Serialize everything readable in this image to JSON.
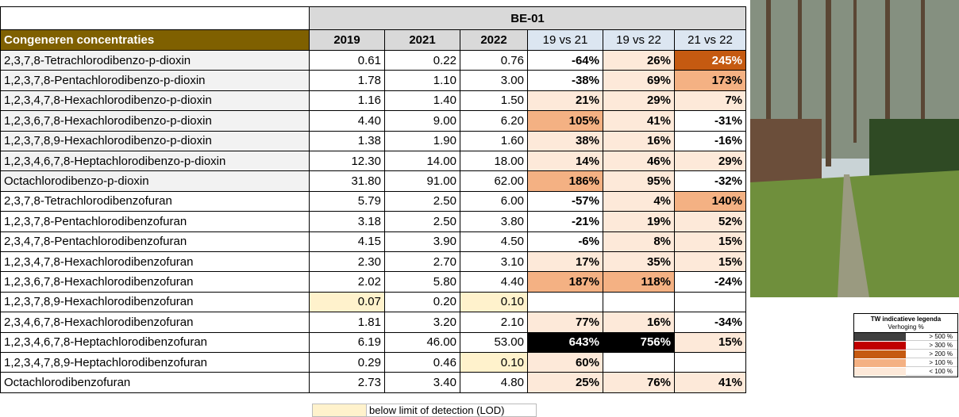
{
  "table": {
    "group_header": "BE-01",
    "name_header": "Congeneren concentraties",
    "year_headers": [
      "2019",
      "2021",
      "2022"
    ],
    "change_headers": [
      "19 vs 21",
      "19 vs 22",
      "21 vs 22"
    ],
    "rows": [
      {
        "name": "2,3,7,8-Tetrachlorodibenzo-p-dioxin",
        "color": "#f2f2f2",
        "cells": [
          "0.61",
          "0.22",
          "0.76",
          "-64%",
          {
            "text": "26%",
            "color": "#fde9d9"
          },
          {
            "text": "245%",
            "color": "#c55a11"
          }
        ]
      },
      {
        "name": "1,2,3,7,8-Pentachlorodibenzo-p-dioxin",
        "color": "#f2f2f2",
        "cells": [
          "1.78",
          "1.10",
          "3.00",
          "-38%",
          {
            "text": "69%",
            "color": "#fde9d9"
          },
          {
            "text": "173%",
            "color": "#f4b183"
          }
        ]
      },
      {
        "name": "1,2,3,4,7,8-Hexachlorodibenzo-p-dioxin",
        "color": "#f2f2f2",
        "cells": [
          "1.16",
          "1.40",
          "1.50",
          {
            "text": "21%",
            "color": "#fde9d9"
          },
          {
            "text": "29%",
            "color": "#fde9d9"
          },
          {
            "text": "7%",
            "color": "#fde9d9"
          }
        ]
      },
      {
        "name": "1,2,3,6,7,8-Hexachlorodibenzo-p-dioxin",
        "color": "#f2f2f2",
        "cells": [
          "4.40",
          "9.00",
          "6.20",
          {
            "text": "105%",
            "color": "#f4b183"
          },
          {
            "text": "41%",
            "color": "#fde9d9"
          },
          "-31%"
        ]
      },
      {
        "name": "1,2,3,7,8,9-Hexachlorodibenzo-p-dioxin",
        "color": "#f2f2f2",
        "cells": [
          "1.38",
          "1.90",
          "1.60",
          {
            "text": "38%",
            "color": "#fde9d9"
          },
          {
            "text": "16%",
            "color": "#fde9d9"
          },
          "-16%"
        ]
      },
      {
        "name": "1,2,3,4,6,7,8-Heptachlorodibenzo-p-dioxin",
        "color": "#f2f2f2",
        "cells": [
          "12.30",
          "14.00",
          "18.00",
          {
            "text": "14%",
            "color": "#fde9d9"
          },
          {
            "text": "46%",
            "color": "#fde9d9"
          },
          {
            "text": "29%",
            "color": "#fde9d9"
          }
        ]
      },
      {
        "name": "Octachlorodibenzo-p-dioxin",
        "color": "#f2f2f2",
        "cells": [
          "31.80",
          "91.00",
          "62.00",
          {
            "text": "186%",
            "color": "#f4b183"
          },
          {
            "text": "95%",
            "color": "#fde9d9"
          },
          "-32%"
        ]
      },
      {
        "name": "2,3,7,8-Tetrachlorodibenzofuran",
        "cells": [
          "5.79",
          "2.50",
          "6.00",
          "-57%",
          {
            "text": "4%",
            "color": "#fde9d9"
          },
          {
            "text": "140%",
            "color": "#f4b183"
          }
        ]
      },
      {
        "name": "1,2,3,7,8-Pentachlorodibenzofuran",
        "cells": [
          "3.18",
          "2.50",
          "3.80",
          "-21%",
          {
            "text": "19%",
            "color": "#fde9d9"
          },
          {
            "text": "52%",
            "color": "#fde9d9"
          }
        ]
      },
      {
        "name": "2,3,4,7,8-Pentachlorodibenzofuran",
        "cells": [
          "4.15",
          "3.90",
          "4.50",
          "-6%",
          {
            "text": "8%",
            "color": "#fde9d9"
          },
          {
            "text": "15%",
            "color": "#fde9d9"
          }
        ]
      },
      {
        "name": "1,2,3,4,7,8-Hexachlorodibenzofuran",
        "cells": [
          "2.30",
          "2.70",
          "3.10",
          {
            "text": "17%",
            "color": "#fde9d9"
          },
          {
            "text": "35%",
            "color": "#fde9d9"
          },
          {
            "text": "15%",
            "color": "#fde9d9"
          }
        ]
      },
      {
        "name": "1,2,3,6,7,8-Hexachlorodibenzofuran",
        "cells": [
          "2.02",
          "5.80",
          "4.40",
          {
            "text": "187%",
            "color": "#f4b183"
          },
          {
            "text": "118%",
            "color": "#f4b183"
          },
          "-24%"
        ]
      },
      {
        "name": "1,2,3,7,8,9-Hexachlorodibenzofuran",
        "cells": [
          {
            "text": "0.07",
            "color": "#fff2cc"
          },
          "0.20",
          {
            "text": "0.10",
            "color": "#fff2cc"
          },
          null,
          null,
          null
        ]
      },
      {
        "name": "2,3,4,6,7,8-Hexachlorodibenzofuran",
        "cells": [
          "1.81",
          "3.20",
          "2.10",
          {
            "text": "77%",
            "color": "#fde9d9"
          },
          {
            "text": "16%",
            "color": "#fde9d9"
          },
          "-34%"
        ]
      },
      {
        "name": "1,2,3,4,6,7,8-Heptachlorodibenzofuran",
        "cells": [
          "6.19",
          "46.00",
          "53.00",
          {
            "text": "643%",
            "color": "#000000"
          },
          {
            "text": "756%",
            "color": "#000000"
          },
          {
            "text": "15%",
            "color": "#fde9d9"
          }
        ]
      },
      {
        "name": "1,2,3,4,7,8,9-Heptachlorodibenzofuran",
        "cells": [
          "0.29",
          "0.46",
          {
            "text": "0.10",
            "color": "#fff2cc"
          },
          {
            "text": "60%",
            "color": "#fde9d9"
          },
          null,
          null
        ]
      },
      {
        "name": "Octachlorodibenzofuran",
        "cells": [
          "2.73",
          "3.40",
          "4.80",
          {
            "text": "25%",
            "color": "#fde9d9"
          },
          {
            "text": "76%",
            "color": "#fde9d9"
          },
          {
            "text": "41%",
            "color": "#fde9d9"
          }
        ]
      }
    ]
  },
  "note": {
    "text": "below limit of detection (LOD)",
    "color": "#fff2cc"
  },
  "legend": {
    "title": "TW indicatieve legenda",
    "subtitle": "Verhoging %",
    "items": [
      {
        "label": "> 500 %",
        "color": "#404040"
      },
      {
        "label": "> 300 %",
        "color": "#c00000"
      },
      {
        "label": "> 200 %",
        "color": "#c55a11"
      },
      {
        "label": "> 100 %",
        "color": "#f4b183"
      },
      {
        "label": "< 100 %",
        "color": "#fde9d9"
      }
    ]
  }
}
